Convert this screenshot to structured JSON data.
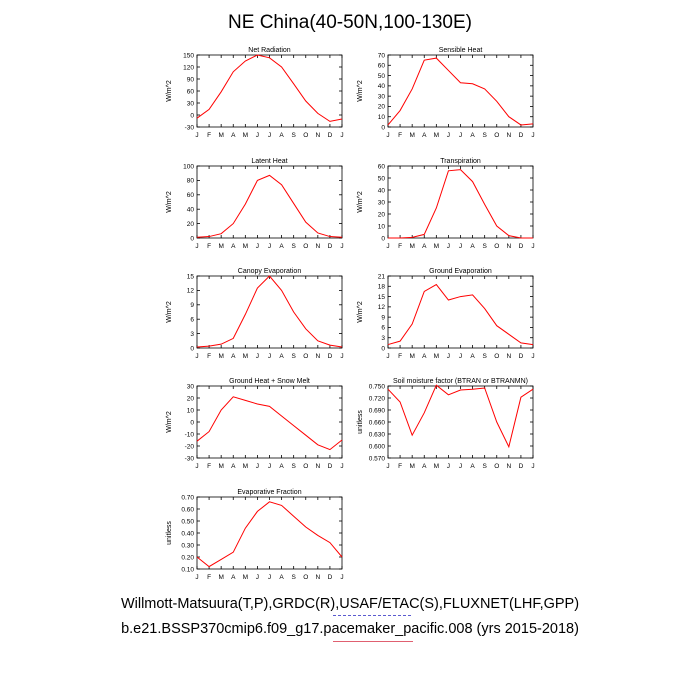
{
  "title": "NE China(40-50N,100-130E)",
  "footer": {
    "line1": "Willmott-Matsuura(T,P),GRDC(R),USAF/ETAC(S),FLUXNET(LHF,GPP)",
    "line2": "b.e21.BSSP370cmip6.f09_g17.pacemaker_pacific.008 (yrs 2015-2018)"
  },
  "colors": {
    "series": "#ff0000",
    "axis": "#000000",
    "background": "#ffffff"
  },
  "chart_data": [
    {
      "type": "line",
      "title": "Net Radiation",
      "ylabel": "W/m^2",
      "categories": [
        "J",
        "F",
        "M",
        "A",
        "M",
        "J",
        "J",
        "A",
        "S",
        "O",
        "N",
        "D",
        "J"
      ],
      "values": [
        -8,
        14,
        58,
        108,
        135,
        150,
        143,
        120,
        78,
        35,
        4,
        -16,
        -10
      ],
      "ylim": [
        -30,
        150
      ],
      "yticks": [
        "150",
        "120",
        "90",
        "60",
        "30",
        "0",
        "-30"
      ]
    },
    {
      "type": "line",
      "title": "Sensible Heat",
      "ylabel": "W/m^2",
      "categories": [
        "J",
        "F",
        "M",
        "A",
        "M",
        "J",
        "J",
        "A",
        "S",
        "O",
        "N",
        "D",
        "J"
      ],
      "values": [
        2,
        16,
        37,
        65,
        67,
        55,
        43,
        42,
        37,
        25,
        10,
        2,
        3
      ],
      "ylim": [
        0,
        70
      ],
      "yticks": [
        "70",
        "60",
        "50",
        "40",
        "30",
        "20",
        "10",
        "0"
      ]
    },
    {
      "type": "line",
      "title": "Latent Heat",
      "ylabel": "W/m^2",
      "categories": [
        "J",
        "F",
        "M",
        "A",
        "M",
        "J",
        "J",
        "A",
        "S",
        "O",
        "N",
        "D",
        "J"
      ],
      "values": [
        1,
        2,
        6,
        20,
        47,
        80,
        87,
        74,
        48,
        22,
        7,
        2,
        1
      ],
      "ylim": [
        0,
        100
      ],
      "yticks": [
        "100",
        "80",
        "60",
        "40",
        "20",
        "0"
      ]
    },
    {
      "type": "line",
      "title": "Transpiration",
      "ylabel": "W/m^2",
      "categories": [
        "J",
        "F",
        "M",
        "A",
        "M",
        "J",
        "J",
        "A",
        "S",
        "O",
        "N",
        "D",
        "J"
      ],
      "values": [
        0,
        0,
        0.5,
        3,
        25,
        56,
        57,
        47,
        28,
        10,
        2,
        0,
        0
      ],
      "ylim": [
        0,
        60
      ],
      "yticks": [
        "60",
        "50",
        "40",
        "30",
        "20",
        "10",
        "0"
      ]
    },
    {
      "type": "line",
      "title": "Canopy Evaporation",
      "ylabel": "W/m^2",
      "categories": [
        "J",
        "F",
        "M",
        "A",
        "M",
        "J",
        "J",
        "A",
        "S",
        "O",
        "N",
        "D",
        "J"
      ],
      "values": [
        0.2,
        0.4,
        0.8,
        2,
        7,
        12.5,
        15,
        12,
        7.5,
        4,
        1.5,
        0.6,
        0.2
      ],
      "ylim": [
        0,
        15
      ],
      "yticks": [
        "15",
        "12",
        "9",
        "6",
        "3",
        "0"
      ]
    },
    {
      "type": "line",
      "title": "Ground Evaporation",
      "ylabel": "W/m^2",
      "categories": [
        "J",
        "F",
        "M",
        "A",
        "M",
        "J",
        "J",
        "A",
        "S",
        "O",
        "N",
        "D",
        "J"
      ],
      "values": [
        1,
        2,
        7,
        16.5,
        18.5,
        14,
        15,
        15.5,
        11.5,
        6.5,
        4,
        1.5,
        1
      ],
      "ylim": [
        0,
        21
      ],
      "yticks": [
        "21",
        "18",
        "15",
        "12",
        "9",
        "6",
        "3",
        "0"
      ]
    },
    {
      "type": "line",
      "title": "Ground Heat + Snow Melt",
      "ylabel": "W/m^2",
      "categories": [
        "J",
        "F",
        "M",
        "A",
        "M",
        "J",
        "J",
        "A",
        "S",
        "O",
        "N",
        "D",
        "J"
      ],
      "values": [
        -16,
        -8,
        10,
        21,
        18,
        15,
        13,
        5,
        -3,
        -11,
        -19,
        -23,
        -15
      ],
      "ylim": [
        -30,
        30
      ],
      "yticks": [
        "30",
        "20",
        "10",
        "0",
        "-10",
        "-20",
        "-30"
      ]
    },
    {
      "type": "line",
      "title": "Soil moisture factor (BTRAN or BTRANMN)",
      "ylabel": "unitless",
      "categories": [
        "J",
        "F",
        "M",
        "A",
        "M",
        "J",
        "J",
        "A",
        "S",
        "O",
        "N",
        "D",
        "J"
      ],
      "values": [
        0.742,
        0.71,
        0.627,
        0.683,
        0.752,
        0.728,
        0.74,
        0.742,
        0.745,
        0.66,
        0.598,
        0.722,
        0.742
      ],
      "ylim": [
        0.57,
        0.75
      ],
      "yticks": [
        "0.750",
        "0.720",
        "0.690",
        "0.660",
        "0.630",
        "0.600",
        "0.570"
      ]
    },
    {
      "type": "line",
      "title": "Evaporative Fraction",
      "ylabel": "unitless",
      "categories": [
        "J",
        "F",
        "M",
        "A",
        "M",
        "J",
        "J",
        "A",
        "S",
        "O",
        "N",
        "D",
        "J"
      ],
      "values": [
        0.2,
        0.12,
        0.18,
        0.24,
        0.44,
        0.58,
        0.66,
        0.63,
        0.54,
        0.45,
        0.38,
        0.32,
        0.2
      ],
      "ylim": [
        0.1,
        0.7
      ],
      "yticks": [
        "0.70",
        "0.60",
        "0.50",
        "0.40",
        "0.30",
        "0.20",
        "0.10"
      ]
    }
  ]
}
